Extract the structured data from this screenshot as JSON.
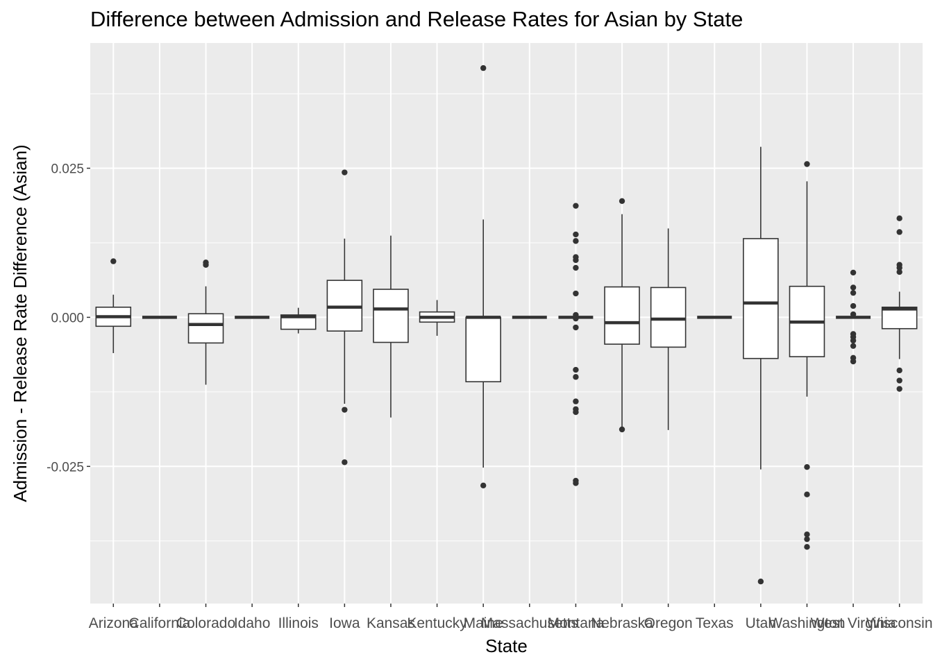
{
  "chart_data": {
    "type": "boxplot",
    "title": "Difference between Admission and Release Rates for Asian by State",
    "xlabel": "State",
    "ylabel": "Admission - Release Rate Difference (Asian)",
    "ylim": [
      -0.048,
      0.046
    ],
    "y_ticks": [
      {
        "value": 0.025,
        "label": "0.025"
      },
      {
        "value": 0.0,
        "label": "0.000"
      },
      {
        "value": -0.025,
        "label": "-0.025"
      }
    ],
    "grid": true,
    "colors": {
      "panel": "#ebebeb",
      "grid": "#ffffff",
      "box_line": "#333333",
      "box_fill": "#ffffff",
      "point": "#333333"
    },
    "categories": [
      "Arizona",
      "California",
      "Colorado",
      "Idaho",
      "Illinois",
      "Iowa",
      "Kansas",
      "Kentucky",
      "Maine",
      "Massachusetts",
      "Montana",
      "Nebraska",
      "Oregon",
      "Texas",
      "Utah",
      "Washington",
      "West Virginia",
      "Wisconsin"
    ],
    "boxes": [
      {
        "state": "Arizona",
        "min": -0.006,
        "q1": -0.0015,
        "median": 0.0001,
        "q3": 0.0017,
        "max": 0.0038,
        "outliers": [
          0.0094
        ]
      },
      {
        "state": "California",
        "min": 0,
        "q1": 0,
        "median": 0,
        "q3": 0,
        "max": 0,
        "outliers": []
      },
      {
        "state": "Colorado",
        "min": -0.0113,
        "q1": -0.0043,
        "median": -0.0012,
        "q3": 0.0006,
        "max": 0.0052,
        "outliers": [
          0.0088,
          0.0092
        ]
      },
      {
        "state": "Idaho",
        "min": 0,
        "q1": 0,
        "median": 0,
        "q3": 0,
        "max": 0,
        "outliers": []
      },
      {
        "state": "Illinois",
        "min": -0.0027,
        "q1": -0.002,
        "median": 0.0001,
        "q3": 0.0004,
        "max": 0.0016,
        "outliers": []
      },
      {
        "state": "Iowa",
        "min": -0.0145,
        "q1": -0.0023,
        "median": 0.0017,
        "q3": 0.0062,
        "max": 0.0132,
        "outliers": [
          0.0243,
          -0.0155,
          -0.0243
        ]
      },
      {
        "state": "Kansas",
        "min": -0.0168,
        "q1": -0.0042,
        "median": 0.0014,
        "q3": 0.0047,
        "max": 0.0137,
        "outliers": []
      },
      {
        "state": "Kentucky",
        "min": -0.0031,
        "q1": -0.0008,
        "median": 0.0,
        "q3": 0.0009,
        "max": 0.0029,
        "outliers": []
      },
      {
        "state": "Maine",
        "min": -0.0252,
        "q1": -0.0108,
        "median": 0.0,
        "q3": 0.0,
        "max": 0.0164,
        "outliers": [
          0.0418,
          -0.0282
        ]
      },
      {
        "state": "Massachusetts",
        "min": 0,
        "q1": 0,
        "median": 0,
        "q3": 0,
        "max": 0,
        "outliers": []
      },
      {
        "state": "Montana",
        "min": 0,
        "q1": 0,
        "median": 0,
        "q3": 0,
        "max": 0,
        "outliers": [
          0.0187,
          0.0139,
          0.0128,
          0.0101,
          0.0096,
          0.0083,
          0.004,
          0.0004,
          -0.0002,
          -0.0017,
          -0.0088,
          -0.01,
          -0.0141,
          -0.0154,
          -0.0159,
          -0.0274,
          -0.0278
        ]
      },
      {
        "state": "Nebraska",
        "min": -0.0188,
        "q1": -0.0045,
        "median": -0.0009,
        "q3": 0.0051,
        "max": 0.0173,
        "outliers": [
          0.0195,
          -0.0188
        ]
      },
      {
        "state": "Oregon",
        "min": -0.0189,
        "q1": -0.005,
        "median": -0.0003,
        "q3": 0.005,
        "max": 0.0149,
        "outliers": []
      },
      {
        "state": "Texas",
        "min": 0,
        "q1": 0,
        "median": 0,
        "q3": 0,
        "max": 0,
        "outliers": []
      },
      {
        "state": "Utah",
        "min": -0.0255,
        "q1": -0.0069,
        "median": 0.0024,
        "q3": 0.0132,
        "max": 0.0286,
        "outliers": [
          -0.0443
        ]
      },
      {
        "state": "Washington",
        "min": -0.0133,
        "q1": -0.0066,
        "median": -0.0008,
        "q3": 0.0052,
        "max": 0.0228,
        "outliers": [
          0.0257,
          -0.0251,
          -0.0297,
          -0.0364,
          -0.0372,
          -0.0385
        ]
      },
      {
        "state": "West Virginia",
        "min": 0,
        "q1": 0,
        "median": 0,
        "q3": 0,
        "max": 0,
        "outliers": [
          0.0075,
          0.005,
          0.0041,
          0.0019,
          0.0005,
          -0.0028,
          -0.0033,
          -0.0039,
          -0.0048,
          -0.0068,
          -0.0074
        ]
      },
      {
        "state": "Wisconsin",
        "min": -0.007,
        "q1": -0.0019,
        "median": 0.0014,
        "q3": 0.0017,
        "max": 0.0043,
        "outliers": [
          0.0166,
          0.0143,
          0.0088,
          0.0083,
          0.0076,
          -0.0089,
          -0.0106,
          -0.012
        ]
      }
    ]
  }
}
